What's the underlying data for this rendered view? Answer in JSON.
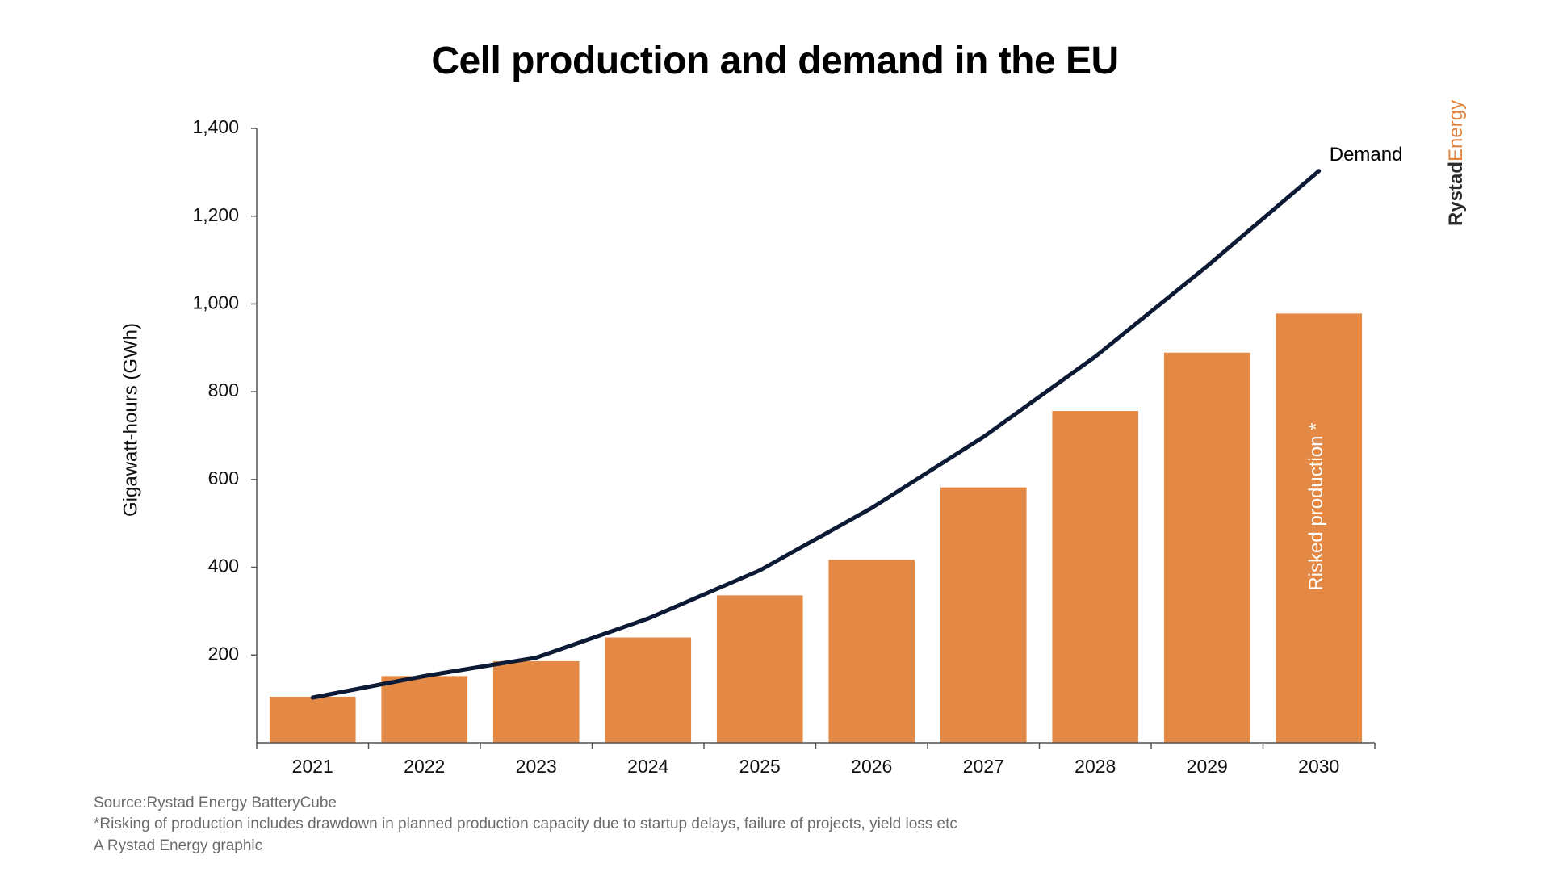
{
  "chart_data": {
    "type": "bar",
    "title": "Cell production and demand in the EU",
    "ylabel": "Gigawatt-hours (GWh)",
    "xlabel": "",
    "ylim": [
      0,
      1400
    ],
    "yticks": [
      200,
      400,
      600,
      800,
      1000,
      1200,
      1400
    ],
    "ytick_labels": [
      "200",
      "400",
      "600",
      "800",
      "1,000",
      "1,200",
      "1,400"
    ],
    "categories": [
      "2021",
      "2022",
      "2023",
      "2024",
      "2025",
      "2026",
      "2027",
      "2028",
      "2029",
      "2030"
    ],
    "series": [
      {
        "type": "bar",
        "values": [
          105,
          152,
          186,
          240,
          336,
          417,
          582,
          756,
          889,
          978
        ],
        "color": "#e38945",
        "label": "Risked production *"
      },
      {
        "type": "line",
        "name": "Demand",
        "values": [
          103,
          152,
          194,
          283,
          393,
          535,
          697,
          880,
          1086,
          1303
        ],
        "color": "#0c1a35"
      }
    ]
  },
  "footnotes": {
    "source": "Source:Rystad Energy BatteryCube",
    "risking": "*Risking of production includes drawdown in planned production capacity due to startup delays, failure of projects, yield loss etc",
    "credit": "A Rystad Energy graphic"
  },
  "brand": {
    "part1": "Rystad",
    "part2": "Energy",
    "color1": "#2b2b2b",
    "color2": "#e2843f"
  }
}
